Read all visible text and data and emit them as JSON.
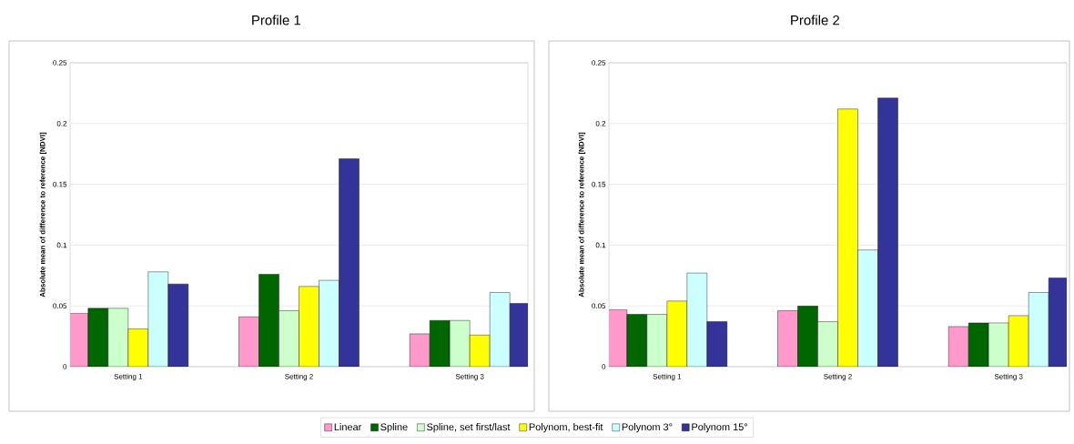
{
  "chart_data": [
    {
      "type": "bar",
      "title": "Profile 1",
      "ylabel": "Absolute mean of difference to reference [NDVI]",
      "categories": [
        "Setting 1",
        "Setting 2",
        "Setting 3"
      ],
      "ylim": [
        0,
        0.25
      ],
      "yticks": [
        0,
        0.05,
        0.1,
        0.15,
        0.2,
        0.25
      ],
      "grid": "y",
      "legend": "bottom",
      "series": [
        {
          "name": "Linear",
          "color": "#ff99cc",
          "values": [
            0.044,
            0.041,
            0.027
          ]
        },
        {
          "name": "Spline",
          "color": "#006600",
          "values": [
            0.048,
            0.076,
            0.038
          ]
        },
        {
          "name": "Spline, set first/last",
          "color": "#ccffcc",
          "values": [
            0.048,
            0.046,
            0.038
          ]
        },
        {
          "name": "Polynom, best-fit",
          "color": "#ffff00",
          "values": [
            0.031,
            0.066,
            0.026
          ]
        },
        {
          "name": "Polynom 3°",
          "color": "#ccffff",
          "values": [
            0.078,
            0.071,
            0.061
          ]
        },
        {
          "name": "Polynom 15°",
          "color": "#333399",
          "values": [
            0.068,
            0.171,
            0.052
          ]
        }
      ]
    },
    {
      "type": "bar",
      "title": "Profile 2",
      "ylabel": "Absolute mean of difference to reference [NDVI]",
      "categories": [
        "Setting 1",
        "Setting 2",
        "Setting 3"
      ],
      "ylim": [
        0,
        0.25
      ],
      "yticks": [
        0,
        0.05,
        0.1,
        0.15,
        0.2,
        0.25
      ],
      "grid": "y",
      "series": [
        {
          "color": "#ff99cc",
          "values": [
            0.047,
            0.046,
            0.033
          ]
        },
        {
          "color": "#006600",
          "values": [
            0.043,
            0.05,
            0.036
          ]
        },
        {
          "color": "#ccffcc",
          "values": [
            0.043,
            0.037,
            0.036
          ]
        },
        {
          "color": "#ffff00",
          "values": [
            0.054,
            0.212,
            0.042
          ]
        },
        {
          "color": "#ccffff",
          "values": [
            0.077,
            0.096,
            0.061
          ]
        },
        {
          "color": "#333399",
          "values": [
            0.037,
            0.221,
            0.073
          ]
        }
      ]
    }
  ]
}
